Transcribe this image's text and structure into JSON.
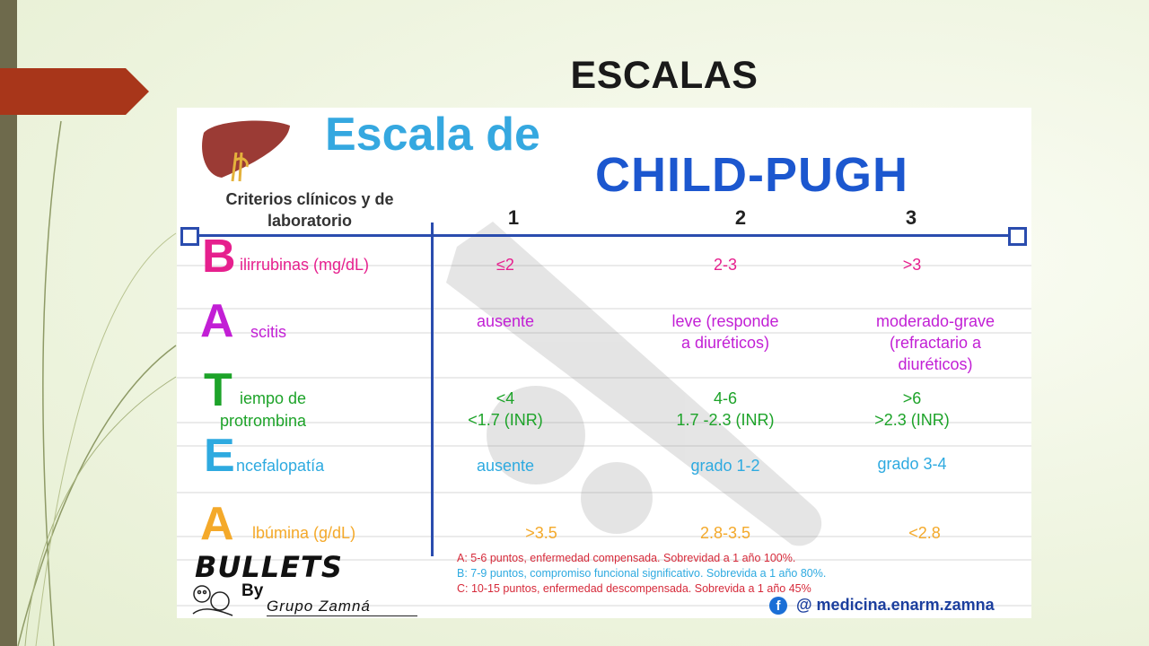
{
  "slide": {
    "title": "ESCALAS"
  },
  "card": {
    "heading_line1": "Escala de",
    "heading_line2": "CHILD-PUGH",
    "criteria_header_line1": "Criterios clínicos y de",
    "criteria_header_line2": "laboratorio",
    "columns": [
      "1",
      "2",
      "3"
    ],
    "rows": [
      {
        "letter": "B",
        "rest": "ilirrubinas (mg/dL)",
        "v1": "≤2",
        "v2": "2-3",
        "v3": ">3"
      },
      {
        "letter": "A",
        "rest": "scitis",
        "v1": "ausente",
        "v2_line1": "leve (responde",
        "v2_line2": "a diuréticos)",
        "v3_line1": "moderado-grave",
        "v3_line2": "(refractario a",
        "v3_line3": "diuréticos)"
      },
      {
        "letter": "T",
        "rest_line1": "iempo de",
        "rest_line2": "protrombina",
        "v1_line1": "<4",
        "v1_line2": "<1.7 (INR)",
        "v2_line1": "4-6",
        "v2_line2": "1.7 -2.3 (INR)",
        "v3_line1": ">6",
        "v3_line2": ">2.3 (INR)"
      },
      {
        "letter": "E",
        "rest": "ncefalopatía",
        "v1": "ausente",
        "v2": "grado 1-2",
        "v3": "grado 3-4"
      },
      {
        "letter": "A",
        "rest": "lbúmina (g/dL)",
        "v1": ">3.5",
        "v2": "2.8-3.5",
        "v3": "<2.8"
      }
    ],
    "legend": [
      "A: 5-6 puntos, enfermedad compensada. Sobrevidad a 1 año 100%.",
      "B: 7-9 puntos, compromiso funcional significativo. Sobrevida a 1 año 80%.",
      "C: 10-15 puntos, enfermedad descompensada. Sobrevida a 1 año 45%"
    ],
    "brand": {
      "bullets": "BULLETS",
      "by": "By",
      "group": "Grupo Zamná",
      "facebook_glyph": "f",
      "handle": "@ medicina.enarm.zamna"
    }
  },
  "colors": {
    "pink": "#e6208e",
    "violet": "#c21fd5",
    "green": "#1da329",
    "light_blue": "#2eaae0",
    "orange": "#f4a92a",
    "dark_blue": "#1c57cf",
    "accent_arrow": "#a8361a"
  },
  "icons": [
    "liver-icon",
    "facebook-icon",
    "mascot-icon",
    "watermark-icon"
  ]
}
